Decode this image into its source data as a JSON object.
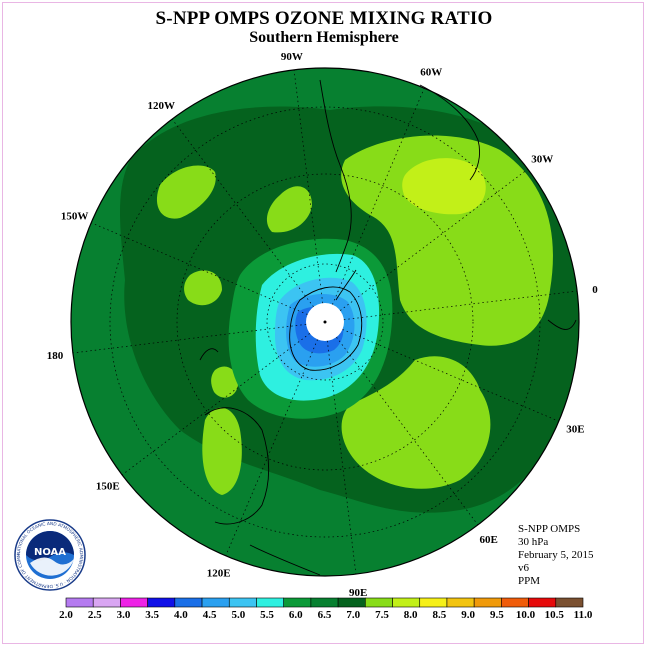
{
  "title": "S-NPP OMPS OZONE MIXING RATIO",
  "subtitle": "Southern Hemisphere",
  "info": {
    "instrument": "S-NPP OMPS",
    "level": "30 hPa",
    "date": "February 5, 2015",
    "version": "v6",
    "units": "PPM"
  },
  "logo": {
    "text": "NOAA",
    "ring_text": "NATIONAL OCEANIC AND ATMOSPHERIC ADMINISTRATION · U.S. DEPARTMENT OF COMMERCE"
  },
  "longitude_labels": [
    {
      "label": "90W",
      "lon": -90
    },
    {
      "label": "60W",
      "lon": -60
    },
    {
      "label": "30W",
      "lon": -30
    },
    {
      "label": "0",
      "lon": 0
    },
    {
      "label": "30E",
      "lon": 30
    },
    {
      "label": "60E",
      "lon": 60
    },
    {
      "label": "90E",
      "lon": 90
    },
    {
      "label": "120E",
      "lon": 120
    },
    {
      "label": "150E",
      "lon": 150
    },
    {
      "label": "180",
      "lon": 180
    },
    {
      "label": "150W",
      "lon": -150
    },
    {
      "label": "120W",
      "lon": -120
    }
  ],
  "colorbar": {
    "ticks": [
      "2.0",
      "2.5",
      "3.0",
      "3.5",
      "4.0",
      "4.5",
      "5.0",
      "5.5",
      "6.0",
      "6.5",
      "7.0",
      "7.5",
      "8.0",
      "8.5",
      "9.0",
      "9.5",
      "10.0",
      "10.5",
      "11.0"
    ],
    "colors": [
      "#b57bf0",
      "#d9a6f2",
      "#ee22e6",
      "#1010e8",
      "#1a6fe8",
      "#2aa0f0",
      "#3cc4f2",
      "#2ef0e0",
      "#0b9a38",
      "#078030",
      "#05621e",
      "#88dc18",
      "#c2f018",
      "#f6f018",
      "#f2c410",
      "#f09a0a",
      "#f05c0a",
      "#e60a0a",
      "#7a5030"
    ]
  },
  "map_colors": {
    "outer": "#078030",
    "band_7": "#05621e",
    "band_75": "#88dc18",
    "band_8": "#c2f018",
    "band_6": "#0b9a38",
    "band_55": "#2ef0e0",
    "band_5": "#3cc4f2",
    "band_45": "#2aa0f0",
    "band_4": "#1a6fe8",
    "pole": "#ffffff"
  }
}
